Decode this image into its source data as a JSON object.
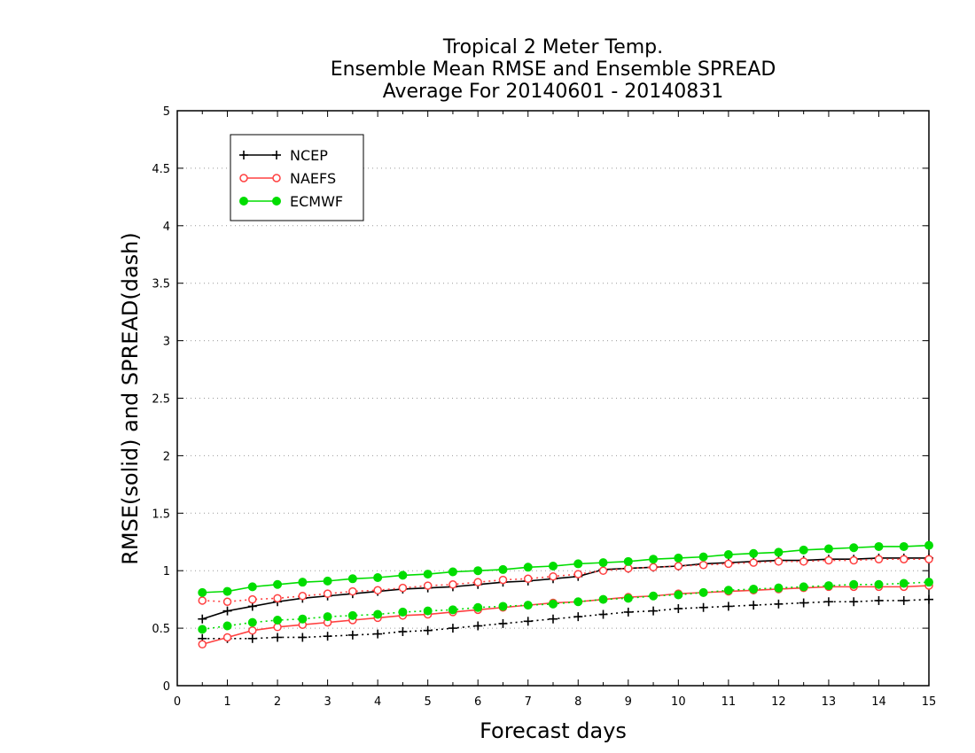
{
  "chart_data": {
    "type": "line",
    "title": [
      "Tropical 2 Meter Temp.",
      "Ensemble Mean RMSE and Ensemble SPREAD",
      "Average For 20140601 - 20140831"
    ],
    "xlabel": "Forecast days",
    "ylabel": "RMSE(solid) and SPREAD(dash)",
    "xlim": [
      0,
      15
    ],
    "ylim": [
      0,
      5
    ],
    "xticks": [
      0,
      1,
      2,
      3,
      4,
      5,
      6,
      7,
      8,
      9,
      10,
      11,
      12,
      13,
      14,
      15
    ],
    "yticks": [
      0,
      0.5,
      1,
      1.5,
      2,
      2.5,
      3,
      3.5,
      4,
      4.5,
      5
    ],
    "ytick_labels": [
      "0",
      "0.5",
      "1",
      "1.5",
      "2",
      "2.5",
      "3",
      "3.5",
      "4",
      "4.5",
      "5"
    ],
    "grid": "horizontal dotted",
    "legend": "top-left",
    "x": [
      0.5,
      1,
      1.5,
      2,
      2.5,
      3,
      3.5,
      4,
      4.5,
      5,
      5.5,
      6,
      6.5,
      7,
      7.5,
      8,
      8.5,
      9,
      9.5,
      10,
      10.5,
      11,
      11.5,
      12,
      12.5,
      13,
      13.5,
      14,
      14.5,
      15
    ],
    "series": [
      {
        "name": "NCEP",
        "metric": "RMSE",
        "style": "solid",
        "marker": "plus",
        "color": "#000000",
        "values": [
          0.58,
          0.65,
          0.69,
          0.73,
          0.76,
          0.78,
          0.8,
          0.82,
          0.84,
          0.85,
          0.86,
          0.88,
          0.9,
          0.91,
          0.93,
          0.95,
          1.01,
          1.02,
          1.03,
          1.04,
          1.06,
          1.07,
          1.08,
          1.09,
          1.09,
          1.1,
          1.1,
          1.11,
          1.11,
          1.11
        ]
      },
      {
        "name": "NCEP",
        "metric": "SPREAD",
        "style": "dash",
        "marker": "plus",
        "color": "#000000",
        "values": [
          0.41,
          0.41,
          0.41,
          0.42,
          0.42,
          0.43,
          0.44,
          0.45,
          0.47,
          0.48,
          0.5,
          0.52,
          0.54,
          0.56,
          0.58,
          0.6,
          0.62,
          0.64,
          0.65,
          0.67,
          0.68,
          0.69,
          0.7,
          0.71,
          0.72,
          0.73,
          0.73,
          0.74,
          0.74,
          0.75
        ]
      },
      {
        "name": "NAEFS",
        "metric": "RMSE",
        "style": "solid",
        "marker": "open-circle",
        "color": "#ff4040",
        "values": [
          0.36,
          0.42,
          0.48,
          0.51,
          0.53,
          0.55,
          0.57,
          0.59,
          0.61,
          0.62,
          0.64,
          0.66,
          0.68,
          0.7,
          0.72,
          0.73,
          0.75,
          0.77,
          0.78,
          0.8,
          0.81,
          0.82,
          0.83,
          0.84,
          0.85,
          0.86,
          0.86,
          0.86,
          0.86,
          0.87
        ]
      },
      {
        "name": "NAEFS",
        "metric": "SPREAD",
        "style": "dash",
        "marker": "open-circle",
        "color": "#ff4040",
        "values": [
          0.74,
          0.73,
          0.75,
          0.76,
          0.78,
          0.8,
          0.82,
          0.83,
          0.85,
          0.87,
          0.88,
          0.9,
          0.92,
          0.93,
          0.95,
          0.97,
          1.0,
          1.02,
          1.03,
          1.04,
          1.05,
          1.06,
          1.07,
          1.08,
          1.08,
          1.09,
          1.09,
          1.1,
          1.1,
          1.1
        ]
      },
      {
        "name": "ECMWF",
        "metric": "RMSE",
        "style": "solid",
        "marker": "filled-circle",
        "color": "#00dd00",
        "values": [
          0.81,
          0.82,
          0.86,
          0.88,
          0.9,
          0.91,
          0.93,
          0.94,
          0.96,
          0.97,
          0.99,
          1.0,
          1.01,
          1.03,
          1.04,
          1.06,
          1.07,
          1.08,
          1.1,
          1.11,
          1.12,
          1.14,
          1.15,
          1.16,
          1.18,
          1.19,
          1.2,
          1.21,
          1.21,
          1.22
        ]
      },
      {
        "name": "ECMWF",
        "metric": "SPREAD",
        "style": "dash",
        "marker": "filled-circle",
        "color": "#00dd00",
        "values": [
          0.49,
          0.52,
          0.55,
          0.57,
          0.58,
          0.6,
          0.61,
          0.62,
          0.64,
          0.65,
          0.66,
          0.68,
          0.69,
          0.7,
          0.71,
          0.73,
          0.75,
          0.76,
          0.78,
          0.79,
          0.81,
          0.83,
          0.84,
          0.85,
          0.86,
          0.87,
          0.88,
          0.88,
          0.89,
          0.9
        ]
      }
    ],
    "legend_entries": [
      {
        "name": "NCEP",
        "marker": "plus",
        "color": "#000000"
      },
      {
        "name": "NAEFS",
        "marker": "open-circle",
        "color": "#ff4040"
      },
      {
        "name": "ECMWF",
        "marker": "filled-circle",
        "color": "#00dd00"
      }
    ]
  }
}
